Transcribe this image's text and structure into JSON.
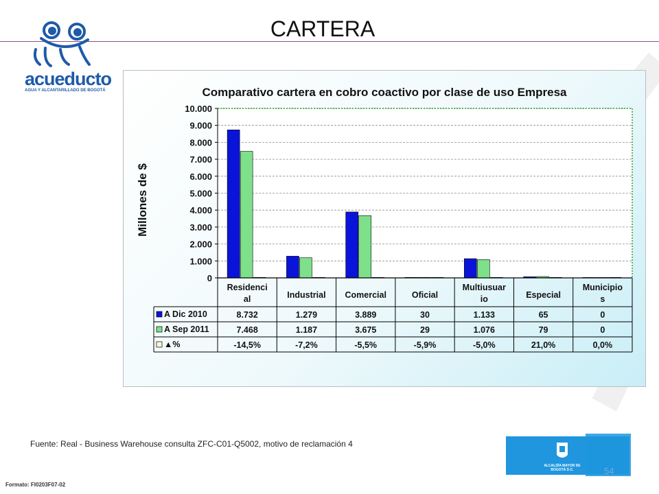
{
  "slide": {
    "title": "CARTERA",
    "source": "Fuente: Real - Business Warehouse consulta ZFC-C01-Q5002, motivo de reclamación 4",
    "format_code": "Formato: FI0203F07-02",
    "page_number": "54",
    "logo_word": "acueducto",
    "logo_sub": "AGUA Y ALCANTARILLADO DE BOGOTÁ",
    "seal_text": "ALCALDÍA MAYOR DE BOGOTÁ D.C."
  },
  "colors": {
    "series1": "#0a14d8",
    "series2": "#7ee08a",
    "series3": "#fbf7d6",
    "gridline": "#8a8a8a",
    "plot_border": "#2fa02f",
    "accent_rule": "#8c4a8c"
  },
  "chart_data": {
    "type": "bar",
    "title": "Comparativo cartera en cobro coactivo por clase de uso Empresa",
    "ylabel": "Millones de $",
    "ylim": [
      0,
      10000
    ],
    "yticks": [
      "0",
      "1.000",
      "2.000",
      "3.000",
      "4.000",
      "5.000",
      "6.000",
      "7.000",
      "8.000",
      "9.000",
      "10.000"
    ],
    "grid": true,
    "categories": [
      "Residenci al",
      "Industrial",
      "Comercial",
      "Oficial",
      "Multiusuar io",
      "Especial",
      "Municipio s"
    ],
    "series": [
      {
        "name": "A Dic 2010",
        "values": [
          8732,
          1279,
          3889,
          30,
          1133,
          65,
          0
        ],
        "labels": [
          "8.732",
          "1.279",
          "3.889",
          "30",
          "1.133",
          "65",
          "0"
        ]
      },
      {
        "name": "A  Sep 2011",
        "values": [
          7468,
          1187,
          3675,
          29,
          1076,
          79,
          0
        ],
        "labels": [
          "7.468",
          "1.187",
          "3.675",
          "29",
          "1.076",
          "79",
          "0"
        ]
      },
      {
        "name": "▲%",
        "values": [
          -14.5,
          -7.2,
          -5.5,
          -5.9,
          -5.0,
          21.0,
          0.0
        ],
        "labels": [
          "-14,5%",
          "-7,2%",
          "-5,5%",
          "-5,9%",
          "-5,0%",
          "21,0%",
          "0,0%"
        ]
      }
    ]
  }
}
